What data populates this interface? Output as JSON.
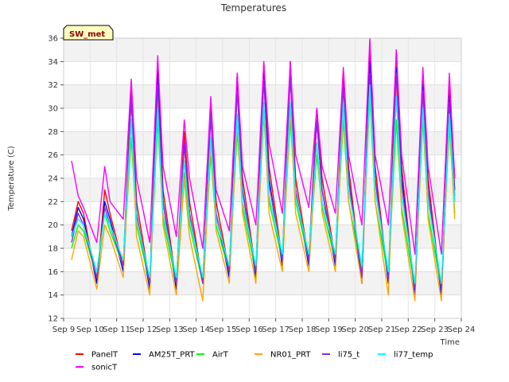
{
  "chart_data": {
    "type": "line",
    "title": "Temperatures",
    "xlabel": "Time",
    "ylabel": "Temperature (C)",
    "site_label": "SW_met",
    "xlim": [
      9,
      24
    ],
    "ylim": [
      12,
      36
    ],
    "x_ticks": [
      {
        "value": 9,
        "label": "Sep 9"
      },
      {
        "value": 10,
        "label": "Sep 10"
      },
      {
        "value": 11,
        "label": "Sep 11"
      },
      {
        "value": 12,
        "label": "Sep 12"
      },
      {
        "value": 13,
        "label": "Sep 13"
      },
      {
        "value": 14,
        "label": "Sep 14"
      },
      {
        "value": 15,
        "label": "Sep 15"
      },
      {
        "value": 16,
        "label": "Sep 16"
      },
      {
        "value": 17,
        "label": "Sep 17"
      },
      {
        "value": 18,
        "label": "Sep 18"
      },
      {
        "value": 19,
        "label": "Sep 19"
      },
      {
        "value": 20,
        "label": "Sep 20"
      },
      {
        "value": 21,
        "label": "Sep 21"
      },
      {
        "value": 22,
        "label": "Sep 22"
      },
      {
        "value": 23,
        "label": "Sep 23"
      },
      {
        "value": 24,
        "label": "Sep 24"
      }
    ],
    "y_ticks": [
      12,
      14,
      16,
      18,
      20,
      22,
      24,
      26,
      28,
      30,
      32,
      34,
      36
    ],
    "grid": true,
    "legend_position": "bottom",
    "daily_samples": {
      "x": [
        9.3,
        9.55,
        9.75,
        10.25,
        10.55,
        10.75,
        11.25,
        11.55,
        11.75,
        12.25,
        12.55,
        12.75,
        13.25,
        13.55,
        13.75,
        14.25,
        14.55,
        14.75,
        15.25,
        15.55,
        15.75,
        16.25,
        16.55,
        16.75,
        17.25,
        17.55,
        17.75,
        18.25,
        18.55,
        18.75,
        19.25,
        19.55,
        19.75,
        20.25,
        20.55,
        20.75,
        21.25,
        21.55,
        21.75,
        22.25,
        22.55,
        22.75,
        23.25,
        23.55,
        23.75
      ]
    },
    "series": [
      {
        "name": "PanelT",
        "color": "#ff0000",
        "values": [
          19.5,
          22,
          21,
          15,
          23,
          21,
          16.5,
          32,
          22,
          15,
          34,
          23,
          15,
          28,
          22,
          15,
          30.5,
          22,
          16,
          33,
          24,
          16,
          34,
          25,
          17,
          34,
          24,
          17,
          30,
          24,
          17,
          33,
          25,
          15,
          35,
          25,
          15,
          35,
          25,
          14,
          33,
          24,
          14,
          32,
          24
        ]
      },
      {
        "name": "AM25T_PRT",
        "color": "#0000ff",
        "values": [
          19,
          21.5,
          20.5,
          15,
          22,
          20.5,
          16,
          31,
          21,
          14.5,
          33,
          22,
          14.5,
          27,
          21,
          15,
          29.5,
          21,
          15.5,
          32,
          23,
          15.5,
          33,
          24,
          16.5,
          33,
          23,
          16.5,
          29,
          23,
          16.5,
          32,
          24,
          15,
          34,
          24,
          15,
          33.5,
          24,
          14,
          32,
          23,
          14,
          31,
          23
        ]
      },
      {
        "name": "AirT",
        "color": "#00ff00",
        "values": [
          18,
          20,
          19.5,
          15.5,
          21,
          19.5,
          16.5,
          27.5,
          20,
          15,
          29,
          20.5,
          15,
          24.5,
          20,
          15,
          26,
          20,
          16,
          28,
          21.5,
          16,
          29.5,
          22,
          17,
          29,
          22,
          17,
          26,
          21.5,
          17,
          29,
          22,
          16,
          31,
          22,
          15.5,
          29,
          21.5,
          14.5,
          29,
          21,
          14.5,
          28.5,
          21
        ]
      },
      {
        "name": "NR01_PRT",
        "color": "#ffa500",
        "values": [
          17,
          19.5,
          19,
          14.5,
          20,
          19,
          15.5,
          29,
          19,
          14,
          31,
          20,
          14,
          24,
          19,
          13.5,
          27,
          19.5,
          15,
          29,
          21,
          15,
          30,
          21,
          16,
          30,
          21,
          16,
          27,
          21,
          16,
          30,
          22,
          15,
          32,
          22,
          14,
          32,
          21,
          13.5,
          30,
          20.5,
          13.5,
          29.5,
          20.5
        ]
      },
      {
        "name": "li75_t",
        "color": "#8a2be2",
        "values": [
          18.5,
          21,
          20,
          15.5,
          21.5,
          20,
          16.5,
          31,
          21,
          15,
          32,
          22,
          15,
          27,
          21,
          15,
          29.5,
          21,
          16,
          31.5,
          23,
          16,
          32.5,
          23.5,
          17,
          33,
          23,
          17,
          29,
          23,
          17,
          32,
          24,
          15.5,
          33,
          24,
          15.5,
          33,
          23.5,
          14.5,
          31.5,
          23,
          14.5,
          30.5,
          22.5
        ]
      },
      {
        "name": "li77_temp",
        "color": "#00ffff",
        "values": [
          19,
          20.5,
          20,
          16,
          21,
          20,
          17,
          29,
          20.5,
          15.5,
          30,
          21,
          15.5,
          25.5,
          20.5,
          15.5,
          27.5,
          20.5,
          16.5,
          29.5,
          22,
          16.5,
          30.5,
          22.5,
          17.5,
          30.5,
          22.5,
          17.5,
          27,
          22,
          17.5,
          30.5,
          23,
          16.5,
          32,
          23,
          16,
          31,
          22.5,
          15,
          30,
          22,
          15,
          29.5,
          22
        ]
      },
      {
        "name": "sonicT",
        "color": "#ff00ff",
        "values": [
          25.5,
          22.5,
          21.5,
          18.5,
          25,
          22,
          20.5,
          32.5,
          24,
          18.5,
          34.5,
          25,
          19,
          29,
          24,
          18,
          31,
          23,
          19.5,
          33,
          25,
          20,
          34,
          27,
          21,
          34,
          26,
          21.5,
          30,
          25,
          21,
          33.5,
          26,
          20,
          36,
          26,
          20,
          35,
          26,
          17.5,
          33.5,
          25,
          17.5,
          33,
          24
        ]
      }
    ]
  }
}
